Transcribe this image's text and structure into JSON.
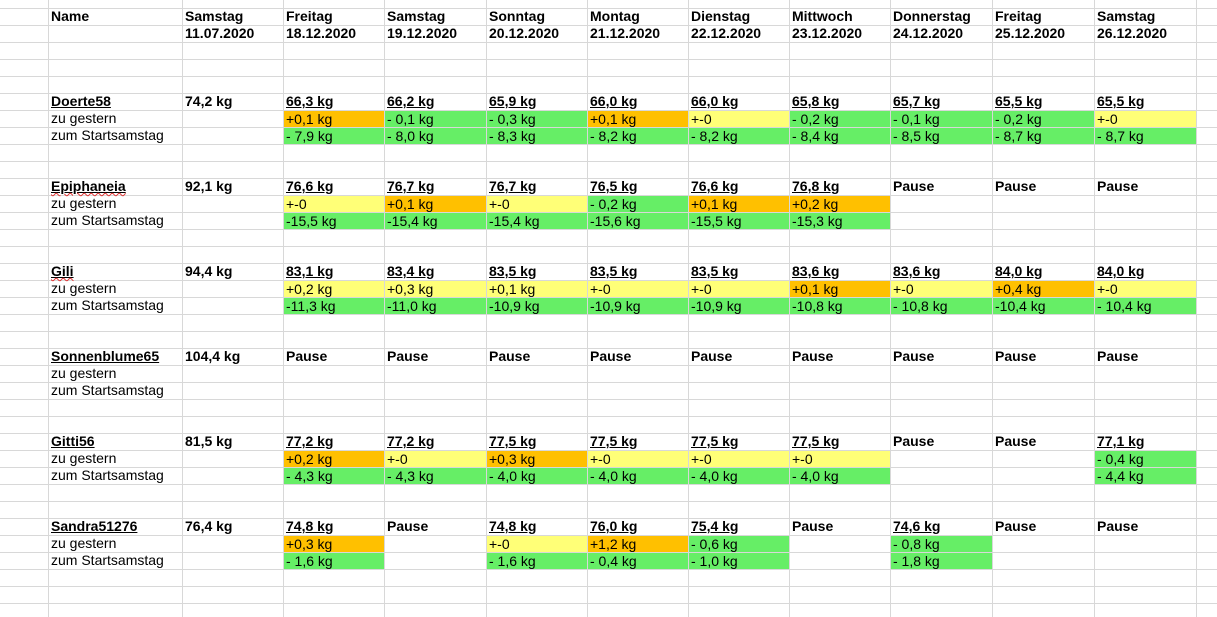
{
  "colors": {
    "green": "#66ee66",
    "yellow": "#ffff77",
    "orange": "#ffc000",
    "grid": "#d8d8d8"
  },
  "header": {
    "name_label": "Name",
    "days": [
      {
        "day": "Samstag",
        "date": "11.07.2020"
      },
      {
        "day": "Freitag",
        "date": "18.12.2020"
      },
      {
        "day": "Samstag",
        "date": "19.12.2020"
      },
      {
        "day": "Sonntag",
        "date": "20.12.2020"
      },
      {
        "day": "Montag",
        "date": "21.12.2020"
      },
      {
        "day": "Dienstag",
        "date": "22.12.2020"
      },
      {
        "day": "Mittwoch",
        "date": "23.12.2020"
      },
      {
        "day": "Donnerstag",
        "date": "24.12.2020"
      },
      {
        "day": "Freitag",
        "date": "25.12.2020"
      },
      {
        "day": "Samstag",
        "date": "26.12.2020"
      }
    ]
  },
  "row_labels": {
    "diff_yesterday": "zu gestern",
    "diff_start": "zum Startsamstag"
  },
  "people": [
    {
      "name": "Doerte58",
      "start": "74,2 kg",
      "weights": [
        "66,3 kg",
        "66,2 kg",
        "65,9 kg",
        "66,0 kg",
        "66,0 kg",
        "65,8 kg",
        "65,7 kg",
        "65,5 kg",
        "65,5 kg"
      ],
      "diff_yesterday": [
        {
          "v": "+0,1 kg",
          "c": "orange"
        },
        {
          "v": "- 0,1 kg",
          "c": "green"
        },
        {
          "v": "- 0,3 kg",
          "c": "green"
        },
        {
          "v": "+0,1 kg",
          "c": "orange"
        },
        {
          "v": "+-0",
          "c": "yellow"
        },
        {
          "v": "- 0,2 kg",
          "c": "green"
        },
        {
          "v": "- 0,1 kg",
          "c": "green"
        },
        {
          "v": "- 0,2 kg",
          "c": "green"
        },
        {
          "v": "+-0",
          "c": "yellow"
        }
      ],
      "diff_start": [
        {
          "v": "- 7,9 kg",
          "c": "green"
        },
        {
          "v": "- 8,0 kg",
          "c": "green"
        },
        {
          "v": "- 8,3 kg",
          "c": "green"
        },
        {
          "v": "- 8,2 kg",
          "c": "green"
        },
        {
          "v": "- 8,2 kg",
          "c": "green"
        },
        {
          "v": "- 8,4 kg",
          "c": "green"
        },
        {
          "v": "- 8,5 kg",
          "c": "green"
        },
        {
          "v": "- 8,7 kg",
          "c": "green"
        },
        {
          "v": "- 8,7 kg",
          "c": "green"
        }
      ]
    },
    {
      "name": "Epiphaneia",
      "start": "92,1 kg",
      "weights": [
        "76,6 kg",
        "76,7 kg",
        "76,7 kg",
        "76,5 kg",
        "76,6 kg",
        "76,8 kg",
        "Pause",
        "Pause",
        "Pause"
      ],
      "diff_yesterday": [
        {
          "v": "+-0",
          "c": "yellow"
        },
        {
          "v": "+0,1 kg",
          "c": "orange"
        },
        {
          "v": "+-0",
          "c": "yellow"
        },
        {
          "v": "- 0,2 kg",
          "c": "green"
        },
        {
          "v": "+0,1 kg",
          "c": "orange"
        },
        {
          "v": "+0,2 kg",
          "c": "orange"
        },
        {
          "v": "",
          "c": ""
        },
        {
          "v": "",
          "c": ""
        },
        {
          "v": "",
          "c": ""
        }
      ],
      "diff_start": [
        {
          "v": "-15,5 kg",
          "c": "green"
        },
        {
          "v": "-15,4 kg",
          "c": "green"
        },
        {
          "v": "-15,4 kg",
          "c": "green"
        },
        {
          "v": "-15,6 kg",
          "c": "green"
        },
        {
          "v": "-15,5 kg",
          "c": "green"
        },
        {
          "v": "-15,3 kg",
          "c": "green"
        },
        {
          "v": "",
          "c": ""
        },
        {
          "v": "",
          "c": ""
        },
        {
          "v": "",
          "c": ""
        }
      ]
    },
    {
      "name": "Gili",
      "start": "94,4 kg",
      "weights": [
        "83,1 kg",
        "83,4 kg",
        "83,5 kg",
        "83,5 kg",
        "83,5 kg",
        "83,6 kg",
        "83,6 kg",
        "84,0 kg",
        "84,0 kg"
      ],
      "diff_yesterday": [
        {
          "v": "+0,2 kg",
          "c": "yellow"
        },
        {
          "v": "+0,3 kg",
          "c": "yellow"
        },
        {
          "v": "+0,1 kg",
          "c": "yellow"
        },
        {
          "v": "+-0",
          "c": "yellow"
        },
        {
          "v": "+-0",
          "c": "yellow"
        },
        {
          "v": "+0,1 kg",
          "c": "orange"
        },
        {
          "v": "+-0",
          "c": "yellow"
        },
        {
          "v": "+0,4 kg",
          "c": "orange"
        },
        {
          "v": "+-0",
          "c": "yellow"
        }
      ],
      "diff_start": [
        {
          "v": "-11,3 kg",
          "c": "green"
        },
        {
          "v": "-11,0 kg",
          "c": "green"
        },
        {
          "v": "-10,9 kg",
          "c": "green"
        },
        {
          "v": "-10,9 kg",
          "c": "green"
        },
        {
          "v": "-10,9 kg",
          "c": "green"
        },
        {
          "v": "-10,8 kg",
          "c": "green"
        },
        {
          "v": "- 10,8 kg",
          "c": "green"
        },
        {
          "v": "-10,4 kg",
          "c": "green"
        },
        {
          "v": "- 10,4 kg",
          "c": "green"
        }
      ]
    },
    {
      "name": "Sonnenblume65",
      "start": "104,4 kg",
      "weights": [
        "Pause",
        "Pause",
        "Pause",
        "Pause",
        "Pause",
        "Pause",
        "Pause",
        "Pause",
        "Pause"
      ],
      "diff_yesterday": [
        {
          "v": "",
          "c": ""
        },
        {
          "v": "",
          "c": ""
        },
        {
          "v": "",
          "c": ""
        },
        {
          "v": "",
          "c": ""
        },
        {
          "v": "",
          "c": ""
        },
        {
          "v": "",
          "c": ""
        },
        {
          "v": "",
          "c": ""
        },
        {
          "v": "",
          "c": ""
        },
        {
          "v": "",
          "c": ""
        }
      ],
      "diff_start": [
        {
          "v": "",
          "c": ""
        },
        {
          "v": "",
          "c": ""
        },
        {
          "v": "",
          "c": ""
        },
        {
          "v": "",
          "c": ""
        },
        {
          "v": "",
          "c": ""
        },
        {
          "v": "",
          "c": ""
        },
        {
          "v": "",
          "c": ""
        },
        {
          "v": "",
          "c": ""
        },
        {
          "v": "",
          "c": ""
        }
      ]
    },
    {
      "name": "Gitti56",
      "start": "81,5 kg",
      "weights": [
        "77,2 kg",
        "77,2 kg",
        "77,5 kg",
        "77,5 kg",
        "77,5 kg",
        "77,5 kg",
        "Pause",
        "Pause",
        "77,1 kg"
      ],
      "diff_yesterday": [
        {
          "v": "+0,2 kg",
          "c": "orange"
        },
        {
          "v": "+-0",
          "c": "yellow"
        },
        {
          "v": "+0,3 kg",
          "c": "orange"
        },
        {
          "v": "+-0",
          "c": "yellow"
        },
        {
          "v": "+-0",
          "c": "yellow"
        },
        {
          "v": "+-0",
          "c": "yellow"
        },
        {
          "v": "",
          "c": ""
        },
        {
          "v": "",
          "c": ""
        },
        {
          "v": "- 0,4 kg",
          "c": "green"
        }
      ],
      "diff_start": [
        {
          "v": "- 4,3 kg",
          "c": "green"
        },
        {
          "v": "- 4,3 kg",
          "c": "green"
        },
        {
          "v": "- 4,0 kg",
          "c": "green"
        },
        {
          "v": "- 4,0 kg",
          "c": "green"
        },
        {
          "v": "- 4,0 kg",
          "c": "green"
        },
        {
          "v": "- 4,0 kg",
          "c": "green"
        },
        {
          "v": "",
          "c": ""
        },
        {
          "v": "",
          "c": ""
        },
        {
          "v": "- 4,4 kg",
          "c": "green"
        }
      ]
    },
    {
      "name": "Sandra51276",
      "start": "76,4 kg",
      "weights": [
        "74,8 kg",
        "Pause",
        "74,8 kg",
        "76,0 kg",
        "75,4 kg",
        "Pause",
        "74,6 kg",
        "Pause",
        "Pause"
      ],
      "diff_yesterday": [
        {
          "v": "+0,3 kg",
          "c": "orange"
        },
        {
          "v": "",
          "c": ""
        },
        {
          "v": "+-0",
          "c": "yellow"
        },
        {
          "v": "+1,2 kg",
          "c": "orange"
        },
        {
          "v": "- 0,6 kg",
          "c": "green"
        },
        {
          "v": "",
          "c": ""
        },
        {
          "v": "- 0,8 kg",
          "c": "green"
        },
        {
          "v": "",
          "c": ""
        },
        {
          "v": "",
          "c": ""
        }
      ],
      "diff_start": [
        {
          "v": "- 1,6 kg",
          "c": "green"
        },
        {
          "v": "",
          "c": ""
        },
        {
          "v": "- 1,6 kg",
          "c": "green"
        },
        {
          "v": "- 0,4 kg",
          "c": "green"
        },
        {
          "v": "- 1,0 kg",
          "c": "green"
        },
        {
          "v": "",
          "c": ""
        },
        {
          "v": "- 1,8 kg",
          "c": "green"
        },
        {
          "v": "",
          "c": ""
        },
        {
          "v": "",
          "c": ""
        }
      ]
    }
  ]
}
